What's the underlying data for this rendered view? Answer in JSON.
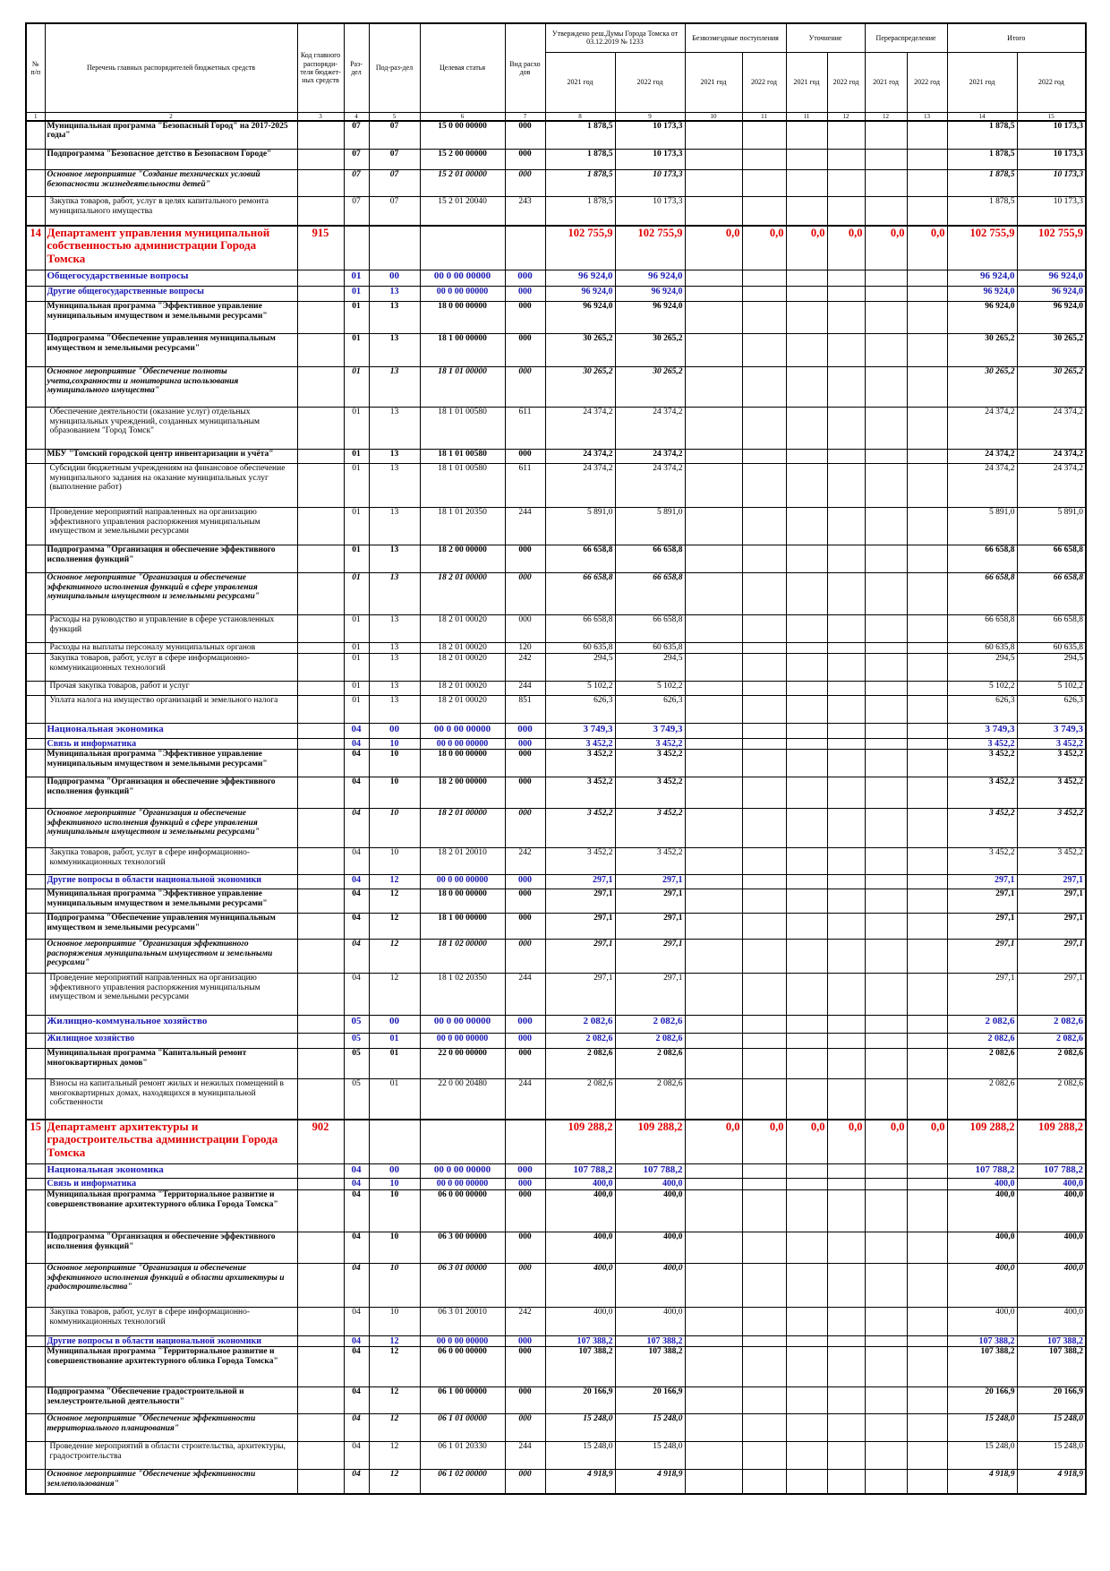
{
  "header": {
    "num": "№ п/п",
    "name": "Перечень главных распорядителей бюджетных средств",
    "code": "Код главного распоряди-теля бюджет-ных средств",
    "section": "Раз-дел",
    "subsection": "Под-раз-дел",
    "target": "Целевая статья",
    "type": "Вид расхо дов",
    "groups": [
      "Утверждено реш.Думы Города Томска от 03.12.2019 № 1233",
      "Безвозмездные поступления",
      "Уточнение",
      "Перераспределение",
      "Итого"
    ],
    "years": [
      "2021 год",
      "2022 год",
      "2021 год",
      "2022 год",
      "2021 год",
      "2022 год",
      "2021 год",
      "2022 год",
      "2021 год",
      "2022 год"
    ],
    "numbers": [
      "1",
      "2",
      "3",
      "4",
      "5",
      "6",
      "7",
      "8",
      "9",
      "10",
      "11",
      "11",
      "12",
      "12",
      "13",
      "14",
      "15"
    ]
  },
  "table": {
    "rows": [
      {
        "name": "Муниципальная программа \"Безопасный Город\" на 2017-2025 годы\"",
        "section": "07",
        "subsection": "07",
        "target": "15 0 00 00000",
        "type": "000",
        "approved": [
          "1 878,5",
          "10 173,3"
        ],
        "total": [
          "1 878,5",
          "10 173,3"
        ]
      },
      {
        "name": "Подпрограмма \"Безопасное детство в Безопасном Городе\"",
        "section": "07",
        "subsection": "07",
        "target": "15 2 00 00000",
        "type": "000",
        "approved": [
          "1 878,5",
          "10 173,3"
        ],
        "total": [
          "1 878,5",
          "10 173,3"
        ]
      },
      {
        "name": "Основное мероприятие \"Создание технических условий безопасности жизнедеятельности детей\"",
        "section": "07",
        "subsection": "07",
        "target": "15 2 01 00000",
        "type": "000",
        "approved": [
          "1 878,5",
          "10 173,3"
        ],
        "total": [
          "1 878,5",
          "10 173,3"
        ]
      },
      {
        "name": "Закупка товаров, работ, услуг в целях капитального ремонта муниципального имущества",
        "section": "07",
        "subsection": "07",
        "target": "15 2 01 20040",
        "type": "243",
        "approved": [
          "1 878,5",
          "10 173,3"
        ],
        "total": [
          "1 878,5",
          "10 173,3"
        ]
      },
      {
        "num": "14",
        "name": "Департамент управления муниципальной собственностью администрации Города Томска",
        "code": "915",
        "approved": [
          "102 755,9",
          "102 755,9"
        ],
        "free": [
          "0,0",
          "0,0"
        ],
        "clarification": [
          "0,0",
          "0,0"
        ],
        "redistribution": [
          "0,0",
          "0,0"
        ],
        "total": [
          "102 755,9",
          "102 755,9"
        ]
      },
      {
        "name": "Общегосударственные вопросы",
        "section": "01",
        "subsection": "00",
        "target": "00 0 00 00000",
        "type": "000",
        "approved": [
          "96 924,0",
          "96 924,0"
        ],
        "total": [
          "96 924,0",
          "96 924,0"
        ]
      },
      {
        "name": "Другие общегосударственные вопросы",
        "section": "01",
        "subsection": "13",
        "target": "00 0 00 00000",
        "type": "000",
        "approved": [
          "96 924,0",
          "96 924,0"
        ],
        "total": [
          "96 924,0",
          "96 924,0"
        ]
      },
      {
        "name": "Муниципальная программа \"Эффективное управление муниципальным имуществом и земельными ресурсами\"",
        "section": "01",
        "subsection": "13",
        "target": "18 0 00 00000",
        "type": "000",
        "approved": [
          "96 924,0",
          "96 924,0"
        ],
        "total": [
          "96 924,0",
          "96 924,0"
        ]
      },
      {
        "name": "Подпрограмма \"Обеспечение управления муниципальным имуществом и земельными ресурсами\"",
        "section": "01",
        "subsection": "13",
        "target": "18 1 00 00000",
        "type": "000",
        "approved": [
          "30 265,2",
          "30 265,2"
        ],
        "total": [
          "30 265,2",
          "30 265,2"
        ]
      },
      {
        "name": "Основное мероприятие \"Обеспечение полноты учета,сохранности и мониторинга использования муниципального имущества\"",
        "section": "01",
        "subsection": "13",
        "target": "18 1 01 00000",
        "type": "000",
        "approved": [
          "30 265,2",
          "30 265,2"
        ],
        "total": [
          "30 265,2",
          "30 265,2"
        ]
      },
      {
        "name": "Обеспечение деятельности (оказание услуг) отдельных муниципальных учреждений, созданных муниципальным образованием \"Город Томск\"",
        "section": "01",
        "subsection": "13",
        "target": "18 1 01 00580",
        "type": "611",
        "approved": [
          "24 374,2",
          "24 374,2"
        ],
        "total": [
          "24 374,2",
          "24 374,2"
        ]
      },
      {
        "name": "МБУ \"Томский городской центр инвентаризации и учёта\"",
        "section": "01",
        "subsection": "13",
        "target": "18 1 01 00580",
        "type": "000",
        "approved": [
          "24 374,2",
          "24 374,2"
        ],
        "total": [
          "24 374,2",
          "24 374,2"
        ]
      },
      {
        "name": "Субсидии бюджетным учреждениям на финансовое обеспечение муниципального задания на оказание муниципальных услуг (выполнение работ)",
        "section": "01",
        "subsection": "13",
        "target": "18 1 01 00580",
        "type": "611",
        "approved": [
          "24 374,2",
          "24 374,2"
        ],
        "total": [
          "24 374,2",
          "24 374,2"
        ]
      },
      {
        "name": "Проведение мероприятий направленных на организацию эффективного управления распоряжения муниципальным имуществом и земельными ресурсами",
        "section": "01",
        "subsection": "13",
        "target": "18 1 01 20350",
        "type": "244",
        "approved": [
          "5 891,0",
          "5 891,0"
        ],
        "total": [
          "5 891,0",
          "5 891,0"
        ]
      },
      {
        "name": "Подпрограмма \"Организация и обеспечение эффективного исполнения функций\"",
        "section": "01",
        "subsection": "13",
        "target": "18 2 00 00000",
        "type": "000",
        "approved": [
          "66 658,8",
          "66 658,8"
        ],
        "total": [
          "66 658,8",
          "66 658,8"
        ]
      },
      {
        "name": "Основное мероприятие \"Организация и обеспечение эффективного исполнения функций в сфере управления муниципальным имуществом и земельными ресурсами\"",
        "section": "01",
        "subsection": "13",
        "target": "18 2 01 00000",
        "type": "000",
        "approved": [
          "66 658,8",
          "66 658,8"
        ],
        "total": [
          "66 658,8",
          "66 658,8"
        ]
      },
      {
        "name": "Расходы на руководство и управление в сфере установленных функций",
        "section": "01",
        "subsection": "13",
        "target": "18 2 01 00020",
        "type": "000",
        "approved": [
          "66 658,8",
          "66 658,8"
        ],
        "total": [
          "66 658,8",
          "66 658,8"
        ]
      },
      {
        "name": "Расходы на выплаты персоналу муниципальных органов",
        "section": "01",
        "subsection": "13",
        "target": "18 2 01 00020",
        "type": "120",
        "approved": [
          "60 635,8",
          "60 635,8"
        ],
        "total": [
          "60 635,8",
          "60 635,8"
        ]
      },
      {
        "name": "Закупка товаров, работ, услуг в сфере информационно-коммуникационных технологий",
        "section": "01",
        "subsection": "13",
        "target": "18 2 01 00020",
        "type": "242",
        "approved": [
          "294,5",
          "294,5"
        ],
        "total": [
          "294,5",
          "294,5"
        ]
      },
      {
        "name": "Прочая закупка товаров, работ и услуг",
        "section": "01",
        "subsection": "13",
        "target": "18 2 01 00020",
        "type": "244",
        "approved": [
          "5 102,2",
          "5 102,2"
        ],
        "total": [
          "5 102,2",
          "5 102,2"
        ]
      },
      {
        "name": "Уплата налога на имущество организаций и земельного налога",
        "section": "01",
        "subsection": "13",
        "target": "18 2 01 00020",
        "type": "851",
        "approved": [
          "626,3",
          "626,3"
        ],
        "total": [
          "626,3",
          "626,3"
        ]
      },
      {
        "name": "Национальная экономика",
        "section": "04",
        "subsection": "00",
        "target": "00 0 00 00000",
        "type": "000",
        "approved": [
          "3 749,3",
          "3 749,3"
        ],
        "total": [
          "3 749,3",
          "3 749,3"
        ]
      },
      {
        "name": "Связь и информатика",
        "section": "04",
        "subsection": "10",
        "target": "00 0 00 00000",
        "type": "000",
        "approved": [
          "3 452,2",
          "3 452,2"
        ],
        "total": [
          "3 452,2",
          "3 452,2"
        ]
      },
      {
        "name": "Муниципальная программа \"Эффективное управление муниципальным имуществом и земельными ресурсами\"",
        "section": "04",
        "subsection": "10",
        "target": "18 0 00 00000",
        "type": "000",
        "approved": [
          "3 452,2",
          "3 452,2"
        ],
        "total": [
          "3 452,2",
          "3 452,2"
        ]
      },
      {
        "name": "Подпрограмма \"Организация и обеспечение эффективного исполнения функций\"",
        "section": "04",
        "subsection": "10",
        "target": "18 2 00 00000",
        "type": "000",
        "approved": [
          "3 452,2",
          "3 452,2"
        ],
        "total": [
          "3 452,2",
          "3 452,2"
        ]
      },
      {
        "name": "Основное мероприятие \"Организация и обеспечение эффективного исполнения функций в сфере управления муниципальным имуществом и земельными ресурсами\"",
        "section": "04",
        "subsection": "10",
        "target": "18 2 01 00000",
        "type": "000",
        "approved": [
          "3 452,2",
          "3 452,2"
        ],
        "total": [
          "3 452,2",
          "3 452,2"
        ]
      },
      {
        "name": "Закупка товаров, работ, услуг в сфере информационно-коммуникационных технологий",
        "section": "04",
        "subsection": "10",
        "target": "18 2 01 20010",
        "type": "242",
        "approved": [
          "3 452,2",
          "3 452,2"
        ],
        "total": [
          "3 452,2",
          "3 452,2"
        ]
      },
      {
        "name": "Другие вопросы в области национальной экономики",
        "section": "04",
        "subsection": "12",
        "target": "00 0 00 00000",
        "type": "000",
        "approved": [
          "297,1",
          "297,1"
        ],
        "total": [
          "297,1",
          "297,1"
        ]
      },
      {
        "name": "Муниципальная программа \"Эффективное управление муниципальным имуществом и земельными ресурсами\"",
        "section": "04",
        "subsection": "12",
        "target": "18 0 00 00000",
        "type": "000",
        "approved": [
          "297,1",
          "297,1"
        ],
        "total": [
          "297,1",
          "297,1"
        ]
      },
      {
        "name": "Подпрограмма \"Обеспечение управления муниципальным имуществом и земельными ресурсами\"",
        "section": "04",
        "subsection": "12",
        "target": "18 1 00 00000",
        "type": "000",
        "approved": [
          "297,1",
          "297,1"
        ],
        "total": [
          "297,1",
          "297,1"
        ]
      },
      {
        "name": "Основное мероприятие \"Организация эффективного распоряжения муниципальным имуществом и земельными ресурсами\"",
        "section": "04",
        "subsection": "12",
        "target": "18 1 02 00000",
        "type": "000",
        "approved": [
          "297,1",
          "297,1"
        ],
        "total": [
          "297,1",
          "297,1"
        ]
      },
      {
        "name": "Проведение мероприятий направленных на организацию эффективного управления распоряжения муниципальным имуществом и земельными ресурсами",
        "section": "04",
        "subsection": "12",
        "target": "18 1 02 20350",
        "type": "244",
        "approved": [
          "297,1",
          "297,1"
        ],
        "total": [
          "297,1",
          "297,1"
        ]
      },
      {
        "name": "Жилищно-коммунальное хозяйство",
        "section": "05",
        "subsection": "00",
        "target": "00 0 00 00000",
        "type": "000",
        "approved": [
          "2 082,6",
          "2 082,6"
        ],
        "total": [
          "2 082,6",
          "2 082,6"
        ]
      },
      {
        "name": "Жилищное хозяйство",
        "section": "05",
        "subsection": "01",
        "target": "00 0 00 00000",
        "type": "000",
        "approved": [
          "2 082,6",
          "2 082,6"
        ],
        "total": [
          "2 082,6",
          "2 082,6"
        ]
      },
      {
        "name": "Муниципальная программа \"Капитальный ремонт многоквартирных домов\"",
        "section": "05",
        "subsection": "01",
        "target": "22 0 00 00000",
        "type": "000",
        "approved": [
          "2 082,6",
          "2 082,6"
        ],
        "total": [
          "2 082,6",
          "2 082,6"
        ]
      },
      {
        "name": "Взносы на капитальный ремонт жилых и нежилых помещений в многоквартирных домах, находящихся в муниципальной собственности",
        "section": "05",
        "subsection": "01",
        "target": "22 0 00 20480",
        "type": "244",
        "approved": [
          "2 082,6",
          "2 082,6"
        ],
        "total": [
          "2 082,6",
          "2 082,6"
        ]
      },
      {
        "num": "15",
        "name": "Департамент архитектуры и градостроительства администрации Города Томска",
        "code": "902",
        "approved": [
          "109 288,2",
          "109 288,2"
        ],
        "free": [
          "0,0",
          "0,0"
        ],
        "clarification": [
          "0,0",
          "0,0"
        ],
        "redistribution": [
          "0,0",
          "0,0"
        ],
        "total": [
          "109 288,2",
          "109 288,2"
        ]
      },
      {
        "name": "Национальная экономика",
        "section": "04",
        "subsection": "00",
        "target": "00 0 00 00000",
        "type": "000",
        "approved": [
          "107 788,2",
          "107 788,2"
        ],
        "total": [
          "107 788,2",
          "107 788,2"
        ]
      },
      {
        "name": "Связь и информатика",
        "section": "04",
        "subsection": "10",
        "target": "00 0 00 00000",
        "type": "000",
        "approved": [
          "400,0",
          "400,0"
        ],
        "total": [
          "400,0",
          "400,0"
        ]
      },
      {
        "name": "Муниципальная программа \"Территориальное развитие и совершенствование архитектурного облика Города Томска\"",
        "section": "04",
        "subsection": "10",
        "target": "06 0 00 00000",
        "type": "000",
        "approved": [
          "400,0",
          "400,0"
        ],
        "total": [
          "400,0",
          "400,0"
        ]
      },
      {
        "name": "Подпрограмма \"Организация и обеспечение эффективного исполнения функций\"",
        "section": "04",
        "subsection": "10",
        "target": "06 3 00 00000",
        "type": "000",
        "approved": [
          "400,0",
          "400,0"
        ],
        "total": [
          "400,0",
          "400,0"
        ]
      },
      {
        "name": "Основное мероприятие \"Организация и обеспечение эффективного исполнения функций в области архитектуры и градостроительства\"",
        "section": "04",
        "subsection": "10",
        "target": "06 3 01 00000",
        "type": "000",
        "approved": [
          "400,0",
          "400,0"
        ],
        "total": [
          "400,0",
          "400,0"
        ]
      },
      {
        "name": "Закупка товаров, работ, услуг в сфере информационно-коммуникационных технологий",
        "section": "04",
        "subsection": "10",
        "target": "06 3 01 20010",
        "type": "242",
        "approved": [
          "400,0",
          "400,0"
        ],
        "total": [
          "400,0",
          "400,0"
        ]
      },
      {
        "name": "Другие вопросы в области национальной экономики",
        "section": "04",
        "subsection": "12",
        "target": "00 0 00 00000",
        "type": "000",
        "approved": [
          "107 388,2",
          "107 388,2"
        ],
        "total": [
          "107 388,2",
          "107 388,2"
        ]
      },
      {
        "name": "Муниципальная программа \"Территориальное развитие и совершенствование архитектурного облика Города Томска\"",
        "section": "04",
        "subsection": "12",
        "target": "06 0 00 00000",
        "type": "000",
        "approved": [
          "107 388,2",
          "107 388,2"
        ],
        "total": [
          "107 388,2",
          "107 388,2"
        ]
      },
      {
        "name": "Подпрограмма \"Обеспечение градостроительной и землеустроительной деятельности\"",
        "section": "04",
        "subsection": "12",
        "target": "06 1 00 00000",
        "type": "000",
        "approved": [
          "20 166,9",
          "20 166,9"
        ],
        "total": [
          "20 166,9",
          "20 166,9"
        ]
      },
      {
        "name": "Основное мероприятие \"Обеспечение эффективности территориального планирования\"",
        "section": "04",
        "subsection": "12",
        "target": "06 1 01 00000",
        "type": "000",
        "approved": [
          "15 248,0",
          "15 248,0"
        ],
        "total": [
          "15 248,0",
          "15 248,0"
        ]
      },
      {
        "name": "Проведение мероприятий в области строительства, архитектуры, градостроительства",
        "section": "04",
        "subsection": "12",
        "target": "06 1 01 20330",
        "type": "244",
        "approved": [
          "15 248,0",
          "15 248,0"
        ],
        "total": [
          "15 248,0",
          "15 248,0"
        ]
      },
      {
        "name": "Основное мероприятие \"Обеспечение эффективности землепользования\"",
        "section": "04",
        "subsection": "12",
        "target": "06 1 02 00000",
        "type": "000",
        "approved": [
          "4 918,9",
          "4 918,9"
        ],
        "total": [
          "4 918,9",
          "4 918,9"
        ]
      }
    ]
  }
}
